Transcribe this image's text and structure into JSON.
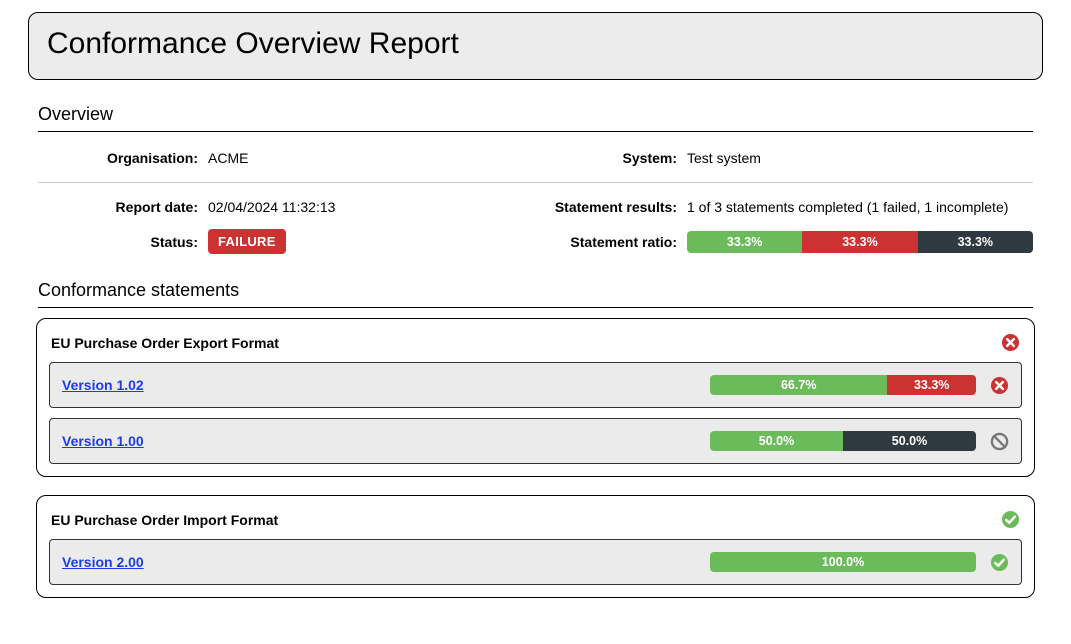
{
  "colors": {
    "green": "#6cbb5a",
    "red": "#cc3232",
    "dark": "#2f3a40",
    "forbid": "#777777",
    "title_bg": "#ececec",
    "row_bg": "#ebebeb",
    "link": "#1a3fe0"
  },
  "title": "Conformance Overview Report",
  "overview": {
    "heading": "Overview",
    "labels": {
      "organisation": "Organisation:",
      "system": "System:",
      "report_date": "Report date:",
      "statement_results": "Statement results:",
      "status": "Status:",
      "statement_ratio": "Statement ratio:"
    },
    "values": {
      "organisation": "ACME",
      "system": "Test system",
      "report_date": "02/04/2024 11:32:13",
      "statement_results": "1 of 3 statements completed (1 failed, 1 incomplete)"
    },
    "status_badge": {
      "text": "FAILURE",
      "bg": "#cc3232"
    },
    "ratio": [
      {
        "label": "33.3%",
        "pct": 33.33,
        "color": "#6cbb5a"
      },
      {
        "label": "33.3%",
        "pct": 33.33,
        "color": "#cc3232"
      },
      {
        "label": "33.3%",
        "pct": 33.34,
        "color": "#2f3a40"
      }
    ]
  },
  "statements": {
    "heading": "Conformance statements",
    "groups": [
      {
        "title": "EU Purchase Order Export Format",
        "status": "fail",
        "versions": [
          {
            "label": "Version 1.02",
            "status": "fail",
            "segments": [
              {
                "label": "66.7%",
                "pct": 66.7,
                "color": "#6cbb5a"
              },
              {
                "label": "33.3%",
                "pct": 33.3,
                "color": "#cc3232"
              }
            ]
          },
          {
            "label": "Version 1.00",
            "status": "forbid",
            "segments": [
              {
                "label": "50.0%",
                "pct": 50,
                "color": "#6cbb5a"
              },
              {
                "label": "50.0%",
                "pct": 50,
                "color": "#2f3a40"
              }
            ]
          }
        ]
      },
      {
        "title": "EU Purchase Order Import Format",
        "status": "pass",
        "versions": [
          {
            "label": "Version 2.00",
            "status": "pass",
            "segments": [
              {
                "label": "100.0%",
                "pct": 100,
                "color": "#6cbb5a"
              }
            ]
          }
        ]
      }
    ]
  }
}
